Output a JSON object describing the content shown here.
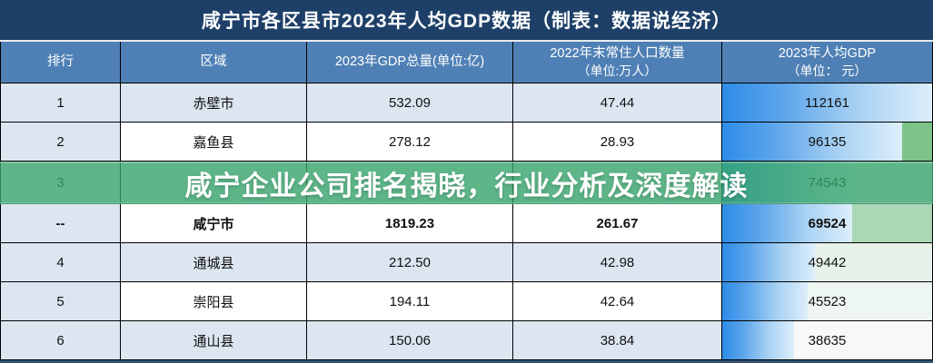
{
  "title": "咸宁市各区县市2023年人均GDP数据（制表：数据说经济）",
  "overlay": {
    "text": "咸宁企业公司排名揭晓，行业分析及深度解读"
  },
  "colors": {
    "title_bg": "#1e4068",
    "header_bg": "#4f80b5",
    "row_alt": "#dce6f1",
    "bar_start": "#2d8ce7",
    "bar_end": "#ddeefb",
    "overlay_green": "rgba(58,166,106,0.78)",
    "bottom_strip": "#33536e"
  },
  "chart_data": {
    "type": "table",
    "title": "咸宁市各区县市2023年人均GDP数据（制表：数据说经济）",
    "columns": [
      {
        "label": "排行",
        "sub": ""
      },
      {
        "label": "区域",
        "sub": ""
      },
      {
        "label": "2023年GDP总量(单位:亿)",
        "sub": ""
      },
      {
        "label": "2022年末常住人口数量",
        "sub": "（单位:万人）"
      },
      {
        "label": "2023年人均GDP",
        "sub": "（单位： 元）"
      }
    ],
    "max_per_capita": 112161,
    "rows": [
      {
        "rank": "1",
        "region": "赤壁市",
        "gdp_2023": "532.09",
        "population_2022": "47.44",
        "per_capita_gdp_2023": "112161",
        "bar_pct": 100,
        "zebra": "light",
        "bar_rest_color": "#ffffff",
        "bold": false,
        "covered_by_overlay": false
      },
      {
        "rank": "2",
        "region": "嘉鱼县",
        "gdp_2023": "278.12",
        "population_2022": "28.93",
        "per_capita_gdp_2023": "96135",
        "bar_pct": 85.7,
        "zebra": "white",
        "bar_rest_color": "#7cc489",
        "bold": false,
        "covered_by_overlay": false
      },
      {
        "rank": "3",
        "region": "",
        "gdp_2023": "",
        "population_2022": "",
        "per_capita_gdp_2023": "74543",
        "bar_pct": 66.5,
        "zebra": "light",
        "bar_rest_color": "#dce6f1",
        "bold": false,
        "covered_by_overlay": true
      },
      {
        "rank": "--",
        "region": "咸宁市",
        "gdp_2023": "1819.23",
        "population_2022": "261.67",
        "per_capita_gdp_2023": "69524",
        "bar_pct": 62.0,
        "zebra": "white",
        "bar_rest_color": "#abd7b5",
        "bold": true,
        "covered_by_overlay": false
      },
      {
        "rank": "4",
        "region": "通城县",
        "gdp_2023": "212.50",
        "population_2022": "42.98",
        "per_capita_gdp_2023": "49442",
        "bar_pct": 44.1,
        "zebra": "light",
        "bar_rest_color": "#e7f3ea",
        "bold": false,
        "covered_by_overlay": false
      },
      {
        "rank": "5",
        "region": "崇阳县",
        "gdp_2023": "194.11",
        "population_2022": "42.64",
        "per_capita_gdp_2023": "45523",
        "bar_pct": 40.6,
        "zebra": "white",
        "bar_rest_color": "#eef6f1",
        "bold": false,
        "covered_by_overlay": false
      },
      {
        "rank": "6",
        "region": "通山县",
        "gdp_2023": "150.06",
        "population_2022": "38.84",
        "per_capita_gdp_2023": "38635",
        "bar_pct": 34.4,
        "zebra": "light",
        "bar_rest_color": "#f7f9f8",
        "bold": false,
        "covered_by_overlay": false
      }
    ]
  }
}
